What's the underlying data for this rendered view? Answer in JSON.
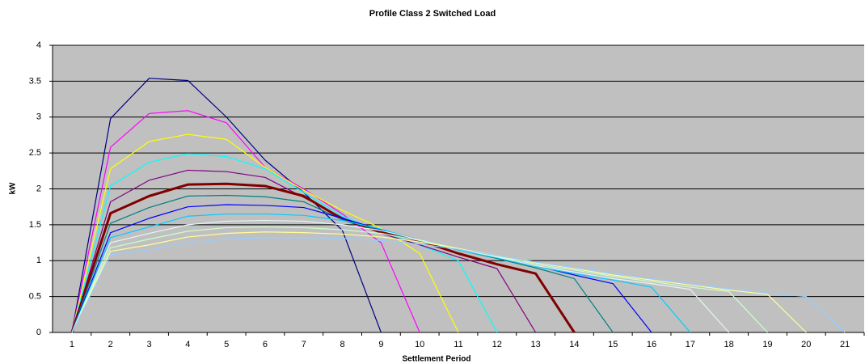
{
  "chart_data": {
    "type": "line",
    "title": "Profile Class 2 Switched Load",
    "x_label": "Settlement Period",
    "y_label": "kW",
    "categories": [
      "1",
      "2",
      "3",
      "4",
      "5",
      "6",
      "7",
      "8",
      "9",
      "10",
      "11",
      "12",
      "13",
      "14",
      "15",
      "16",
      "17",
      "18",
      "19",
      "20",
      "21"
    ],
    "ylim": [
      0,
      4
    ],
    "yticks": [
      0,
      0.5,
      1,
      1.5,
      2,
      2.5,
      3,
      3.5,
      4
    ],
    "grid": true,
    "background": "#c0c0c0",
    "series": [
      {
        "color": "#000080",
        "line_width": 1.2,
        "values": [
          0,
          2.98,
          3.54,
          3.51,
          3.0,
          2.4,
          1.95,
          1.42,
          0,
          null,
          null,
          null,
          null,
          null,
          null,
          null,
          null,
          null,
          null,
          null,
          null
        ]
      },
      {
        "color": "#ff00ff",
        "line_width": 1.2,
        "values": [
          0,
          2.58,
          3.05,
          3.09,
          2.92,
          2.3,
          2.0,
          1.65,
          1.25,
          0,
          null,
          null,
          null,
          null,
          null,
          null,
          null,
          null,
          null,
          null,
          null
        ]
      },
      {
        "color": "#ffff00",
        "line_width": 1.2,
        "values": [
          0,
          2.28,
          2.66,
          2.76,
          2.69,
          2.3,
          1.98,
          1.7,
          1.45,
          1.1,
          0,
          null,
          null,
          null,
          null,
          null,
          null,
          null,
          null,
          null,
          null
        ]
      },
      {
        "color": "#00ffff",
        "line_width": 1.2,
        "values": [
          0,
          2.04,
          2.37,
          2.49,
          2.45,
          2.28,
          1.95,
          1.62,
          1.4,
          1.22,
          1.0,
          0,
          null,
          null,
          null,
          null,
          null,
          null,
          null,
          null,
          null
        ]
      },
      {
        "color": "#800080",
        "line_width": 1.2,
        "values": [
          0,
          1.82,
          2.12,
          2.26,
          2.24,
          2.16,
          1.88,
          1.6,
          1.38,
          1.22,
          1.05,
          0.89,
          0,
          null,
          null,
          null,
          null,
          null,
          null,
          null,
          null
        ]
      },
      {
        "color": "#800000",
        "line_width": 3,
        "values": [
          0,
          1.66,
          1.9,
          2.06,
          2.07,
          2.04,
          1.9,
          1.58,
          1.4,
          1.28,
          1.1,
          0.95,
          0.82,
          0,
          null,
          null,
          null,
          null,
          null,
          null,
          null
        ]
      },
      {
        "color": "#008080",
        "line_width": 1.2,
        "values": [
          0,
          1.52,
          1.74,
          1.9,
          1.91,
          1.89,
          1.82,
          1.57,
          1.42,
          1.28,
          1.15,
          1.03,
          0.9,
          0.75,
          0,
          null,
          null,
          null,
          null,
          null,
          null
        ]
      },
      {
        "color": "#0000ff",
        "line_width": 1.2,
        "values": [
          0,
          1.39,
          1.59,
          1.75,
          1.78,
          1.77,
          1.74,
          1.59,
          1.43,
          1.29,
          1.16,
          1.05,
          0.93,
          0.8,
          0.68,
          0,
          null,
          null,
          null,
          null,
          null
        ]
      },
      {
        "color": "#00ccff",
        "line_width": 1.2,
        "values": [
          0,
          1.32,
          1.47,
          1.62,
          1.65,
          1.65,
          1.63,
          1.56,
          1.44,
          1.28,
          1.15,
          1.04,
          0.92,
          0.82,
          0.73,
          0.63,
          0,
          null,
          null,
          null,
          null
        ]
      },
      {
        "color": "#e6f5f5",
        "line_width": 1.2,
        "values": [
          0,
          1.25,
          1.38,
          1.5,
          1.55,
          1.56,
          1.55,
          1.5,
          1.42,
          1.29,
          1.16,
          1.05,
          0.93,
          0.84,
          0.75,
          0.68,
          0.6,
          0,
          null,
          null,
          null
        ]
      },
      {
        "color": "#ccffcc",
        "line_width": 1.2,
        "values": [
          0,
          1.18,
          1.3,
          1.41,
          1.46,
          1.47,
          1.46,
          1.43,
          1.38,
          1.28,
          1.17,
          1.06,
          0.95,
          0.87,
          0.78,
          0.71,
          0.63,
          0.57,
          0,
          null,
          null
        ]
      },
      {
        "color": "#ffff99",
        "line_width": 1.2,
        "values": [
          0,
          1.13,
          1.22,
          1.33,
          1.38,
          1.4,
          1.39,
          1.37,
          1.33,
          1.26,
          1.17,
          1.07,
          0.97,
          0.89,
          0.8,
          0.73,
          0.66,
          0.59,
          0.53,
          0,
          null
        ]
      },
      {
        "color": "#99ccff",
        "line_width": 1.2,
        "values": [
          0,
          1.08,
          1.15,
          1.25,
          1.3,
          1.32,
          1.32,
          1.31,
          1.28,
          1.23,
          1.16,
          1.07,
          0.98,
          0.9,
          0.82,
          0.75,
          0.68,
          0.61,
          0.55,
          0.5,
          0
        ]
      }
    ]
  }
}
